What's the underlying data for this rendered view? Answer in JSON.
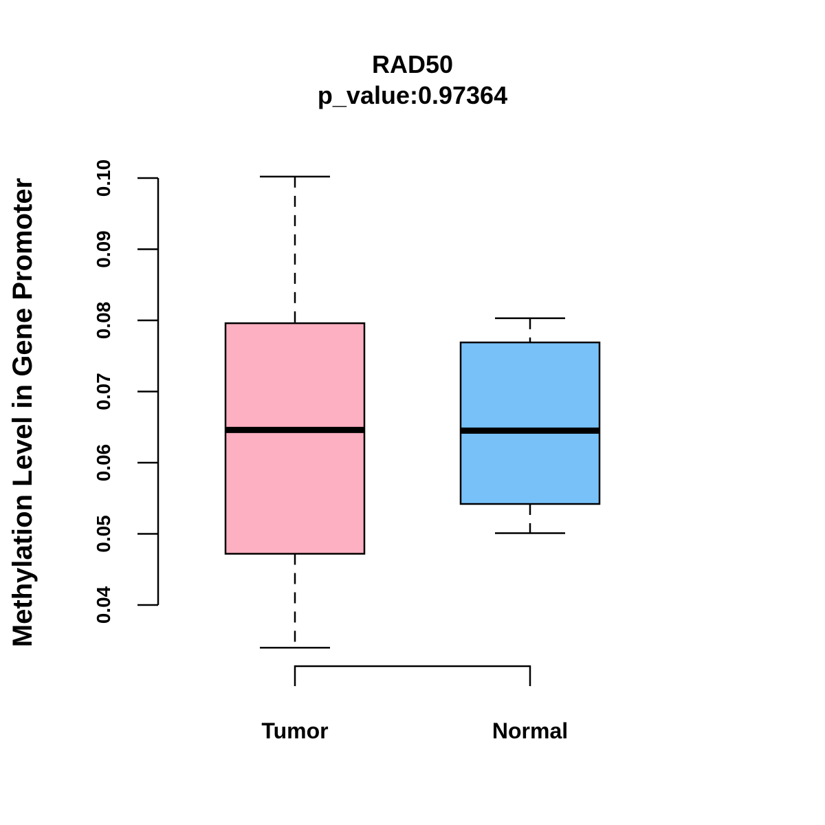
{
  "chart_data": {
    "type": "boxplot",
    "title": "RAD50",
    "subtitle": "p_value:0.97364",
    "ylabel": "Methylation Level in Gene Promoter",
    "xlabel": "",
    "ylim": [
      0.04,
      0.1
    ],
    "yticks": [
      0.04,
      0.05,
      0.06,
      0.07,
      0.08,
      0.09,
      0.1
    ],
    "ytick_labels": [
      "0.04",
      "0.05",
      "0.06",
      "0.07",
      "0.08",
      "0.09",
      "0.10"
    ],
    "categories": [
      "Tumor",
      "Normal"
    ],
    "series": [
      {
        "name": "Tumor",
        "color": "#FDB0C1",
        "min": 0.034,
        "q1": 0.0472,
        "median": 0.0646,
        "q3": 0.0796,
        "max": 0.1002
      },
      {
        "name": "Normal",
        "color": "#78C1F8",
        "min": 0.0501,
        "q1": 0.0542,
        "median": 0.0645,
        "q3": 0.0769,
        "max": 0.0803
      }
    ],
    "comparison_bracket": [
      "Tumor",
      "Normal"
    ]
  }
}
